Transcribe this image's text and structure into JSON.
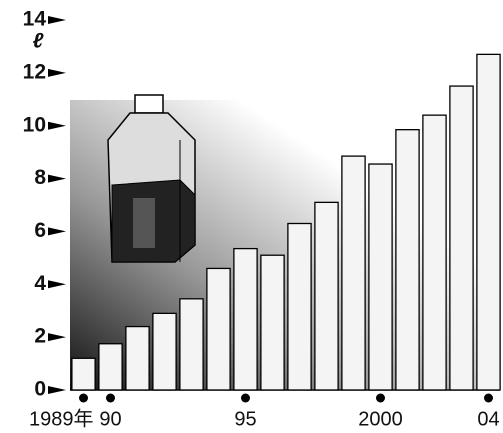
{
  "chart_data": {
    "type": "bar",
    "y_label": "ℓ",
    "categories": [
      "1989年",
      "90",
      null,
      null,
      null,
      null,
      "95",
      null,
      null,
      null,
      null,
      "2000",
      null,
      null,
      null,
      "04"
    ],
    "values": [
      1.2,
      1.75,
      2.4,
      2.9,
      3.45,
      4.6,
      5.35,
      5.1,
      6.3,
      7.1,
      8.85,
      8.55,
      9.85,
      10.4,
      11.5,
      12.7
    ],
    "color": "#f4f4f4",
    "ylim": [
      0,
      14
    ],
    "yticks": [
      0,
      2,
      4,
      6,
      8,
      10,
      12,
      14
    ],
    "grid": false
  }
}
